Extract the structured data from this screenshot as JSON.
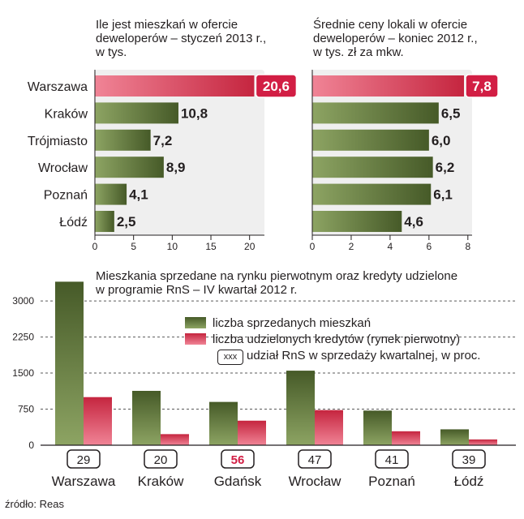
{
  "source": "źródło: Reas",
  "colors": {
    "green_dark": "#465a28",
    "green_light": "#8da463",
    "red_dark": "#c5253f",
    "red_light": "#f08496",
    "accent_red": "#d21e44",
    "text": "#231f20"
  },
  "chart_data": [
    {
      "type": "bar",
      "orientation": "horizontal",
      "title": "Ile jest mieszkań w ofercie deweloperów – styczeń 2013 r., w tys.",
      "title_lines": [
        "Ile jest mieszkań w ofercie",
        "deweloperów – styczeń 2013 r.,",
        "w tys."
      ],
      "categories": [
        "Warszawa",
        "Kraków",
        "Trójmiasto",
        "Wrocław",
        "Poznań",
        "Łódź"
      ],
      "values": [
        20.6,
        10.8,
        7.2,
        8.9,
        4.1,
        2.5
      ],
      "value_labels": [
        "20,6",
        "10,8",
        "7,2",
        "8,9",
        "4,1",
        "2,5"
      ],
      "xlim": [
        0,
        21.5
      ],
      "xticks": [
        0,
        5,
        10,
        15,
        20
      ],
      "xtick_labels": [
        "0",
        "5",
        "10",
        "15",
        "20"
      ],
      "highlight_index": 0,
      "grid": false
    },
    {
      "type": "bar",
      "orientation": "horizontal",
      "title": "Średnie ceny lokali w ofercie deweloperów – koniec 2012 r., w tys. zł za mkw.",
      "title_lines": [
        "Średnie ceny lokali w ofercie",
        "deweloperów –  koniec 2012 r.,",
        "w tys. zł za mkw."
      ],
      "categories": [
        "Warszawa",
        "Kraków",
        "Trójmiasto",
        "Wrocław",
        "Poznań",
        "Łódź"
      ],
      "values": [
        7.8,
        6.5,
        6.0,
        6.2,
        6.1,
        4.6
      ],
      "value_labels": [
        "7,8",
        "6,5",
        "6,0",
        "6,2",
        "6,1",
        "4,6"
      ],
      "xlim": [
        0,
        8.05
      ],
      "xticks": [
        0,
        2,
        4,
        6,
        8
      ],
      "xtick_labels": [
        "0",
        "2",
        "4",
        "6",
        "8"
      ],
      "highlight_index": 0,
      "grid": false
    },
    {
      "type": "bar",
      "orientation": "vertical",
      "title": "Mieszkania sprzedane na rynku pierwotnym oraz kredyty udzielone w programie RnS – IV kwartał 2012 r.",
      "title_lines": [
        "Mieszkania sprzedane na rynku pierwotnym oraz kredyty udzielone",
        "w programie RnS – IV kwartał 2012 r."
      ],
      "categories": [
        "Warszawa",
        "Kraków",
        "Gdańsk",
        "Wrocław",
        "Poznań",
        "Łódź"
      ],
      "series": [
        {
          "name": "liczba sprzedanych mieszkań",
          "values": [
            3400,
            1130,
            900,
            1550,
            720,
            330
          ]
        },
        {
          "name": "liczba udzielonych kredytów (rynek pierwotny)",
          "values": [
            1000,
            230,
            510,
            730,
            290,
            120
          ]
        }
      ],
      "share_rns": [
        29,
        20,
        56,
        47,
        41,
        39
      ],
      "share_highlight_index": 2,
      "share_legend_box": "xxx",
      "share_legend_label": "udział RnS w sprzedaży kwartalnej, w proc.",
      "ylim": [
        0,
        3440
      ],
      "yticks": [
        0,
        750,
        1500,
        2250,
        3000
      ],
      "ytick_labels": [
        "0",
        "750",
        "1500",
        "2250",
        "3000"
      ],
      "grid": true,
      "legend_position": "top-right"
    }
  ]
}
